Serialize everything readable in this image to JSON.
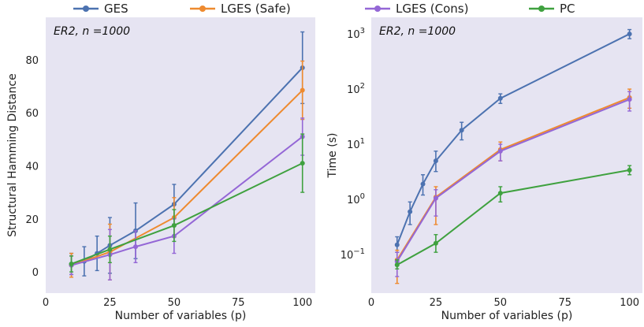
{
  "legend": [
    {
      "name": "GES",
      "color": "#4c72b0"
    },
    {
      "name": "LGES (Safe)",
      "color": "#ee8a2f"
    },
    {
      "name": "LGES (Cons)",
      "color": "#9467d6"
    },
    {
      "name": "PC",
      "color": "#3fa13f"
    }
  ],
  "chart_data": [
    {
      "type": "line",
      "annotation": "ER2, n =1000",
      "xlabel": "Number of variables (p)",
      "ylabel": "Structural Hamming Distance",
      "xlim": [
        0,
        105
      ],
      "ylim": [
        -8,
        96
      ],
      "xticks": [
        0,
        25,
        50,
        75,
        100
      ],
      "yticks": [
        0,
        20,
        40,
        60,
        80
      ],
      "yscale": "linear",
      "grid": false,
      "background": "#e6e4f2",
      "series": [
        {
          "name": "GES",
          "color": "#4c72b0",
          "x": [
            10,
            15,
            20,
            25,
            35,
            50,
            100
          ],
          "y": [
            3,
            4,
            7,
            10,
            15.5,
            25.5,
            77
          ],
          "err": [
            4,
            5.5,
            6.5,
            10.5,
            10.5,
            7.5,
            13.5
          ]
        },
        {
          "name": "LGES (Safe)",
          "color": "#ee8a2f",
          "x": [
            10,
            25,
            50,
            100
          ],
          "y": [
            2.5,
            7.5,
            20.5,
            68.5
          ],
          "err": [
            4.5,
            10.5,
            7.5,
            11
          ]
        },
        {
          "name": "LGES (Cons)",
          "color": "#9467d6",
          "x": [
            10,
            25,
            35,
            50,
            100
          ],
          "y": [
            2.5,
            6.5,
            9.5,
            13.5,
            51
          ],
          "err": [
            3.5,
            9.5,
            6,
            6.5,
            7
          ]
        },
        {
          "name": "PC",
          "color": "#3fa13f",
          "x": [
            10,
            25,
            50,
            100
          ],
          "y": [
            3,
            8.5,
            17.5,
            41
          ],
          "err": [
            3,
            5,
            6,
            11
          ]
        }
      ]
    },
    {
      "type": "line",
      "annotation": "ER2, n =1000",
      "xlabel": "Number of variables (p)",
      "ylabel": "Time (s)",
      "xlim": [
        0,
        105
      ],
      "ylim": [
        0.02,
        2000
      ],
      "xticks": [
        0,
        25,
        50,
        75,
        100
      ],
      "yticks": [
        0.1,
        1,
        10,
        100,
        1000
      ],
      "ytick_labels": [
        [
          "10",
          "−1"
        ],
        [
          "10",
          "0"
        ],
        [
          "10",
          "1"
        ],
        [
          "10",
          "2"
        ],
        [
          "10",
          "3"
        ]
      ],
      "yscale": "log",
      "grid": false,
      "background": "#e6e4f2",
      "series": [
        {
          "name": "GES",
          "color": "#4c72b0",
          "x": [
            10,
            15,
            20,
            25,
            35,
            50,
            100
          ],
          "y": [
            0.15,
            0.6,
            1.9,
            5,
            18,
            68,
            1000
          ],
          "lo": [
            0.11,
            0.35,
            1.2,
            3.2,
            12,
            55,
            820
          ],
          "hi": [
            0.21,
            0.9,
            2.8,
            7.5,
            25,
            82,
            1200
          ]
        },
        {
          "name": "LGES (Safe)",
          "color": "#ee8a2f",
          "x": [
            10,
            25,
            50,
            100
          ],
          "y": [
            0.08,
            1.1,
            8,
            70
          ],
          "lo": [
            0.03,
            0.35,
            5,
            45
          ],
          "hi": [
            0.12,
            1.7,
            11,
            100
          ]
        },
        {
          "name": "LGES (Cons)",
          "color": "#9467d6",
          "x": [
            10,
            25,
            50,
            100
          ],
          "y": [
            0.075,
            1.05,
            7.5,
            65
          ],
          "lo": [
            0.04,
            0.5,
            5,
            40
          ],
          "hi": [
            0.11,
            1.5,
            10,
            90
          ]
        },
        {
          "name": "PC",
          "color": "#3fa13f",
          "x": [
            10,
            25,
            50,
            100
          ],
          "y": [
            0.065,
            0.16,
            1.3,
            3.4
          ],
          "lo": [
            0.055,
            0.11,
            0.9,
            2.8
          ],
          "hi": [
            0.08,
            0.23,
            1.7,
            4.1
          ]
        }
      ]
    }
  ]
}
